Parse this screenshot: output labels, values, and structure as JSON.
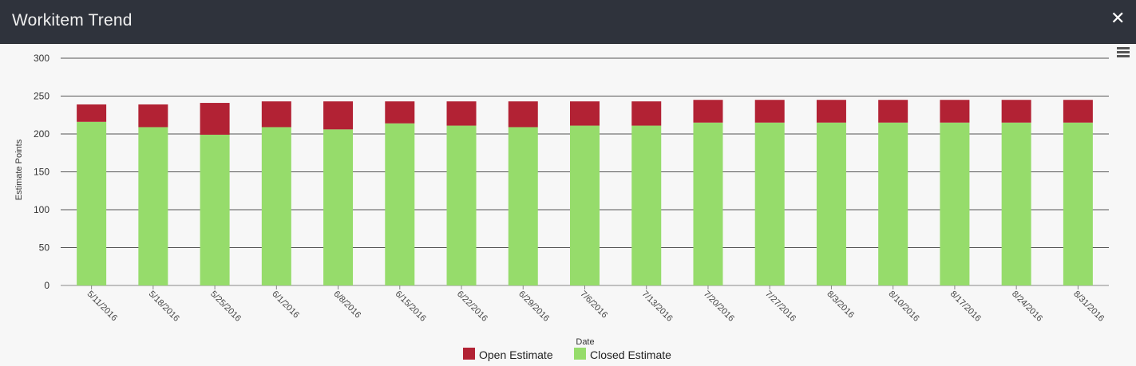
{
  "window": {
    "title": "Workitem Trend"
  },
  "colors": {
    "open": "#b22234",
    "closed": "#96dc6b",
    "titlebar": "#2f333c",
    "grid": "#555555"
  },
  "icons": {
    "close": "close-icon",
    "menu": "hamburger-menu-icon"
  },
  "chart_data": {
    "type": "bar",
    "stacked": true,
    "xlabel": "Date",
    "ylabel": "Estimate Points",
    "ylim": [
      0,
      300
    ],
    "yticks": [
      0,
      50,
      100,
      150,
      200,
      250,
      300
    ],
    "grid": true,
    "legend_position": "bottom-center",
    "categories": [
      "5/11/2016",
      "5/18/2016",
      "5/25/2016",
      "6/1/2016",
      "6/8/2016",
      "6/15/2016",
      "6/22/2016",
      "6/29/2016",
      "7/6/2016",
      "7/13/2016",
      "7/20/2016",
      "7/27/2016",
      "8/3/2016",
      "8/10/2016",
      "8/17/2016",
      "8/24/2016",
      "8/31/2016"
    ],
    "series": [
      {
        "name": "Closed Estimate",
        "values": [
          216,
          209,
          199,
          209,
          206,
          214,
          211,
          209,
          211,
          211,
          215,
          215,
          215,
          215,
          215,
          215,
          215
        ]
      },
      {
        "name": "Open Estimate",
        "values": [
          23,
          30,
          42,
          34,
          37,
          29,
          32,
          34,
          32,
          32,
          30,
          30,
          30,
          30,
          30,
          30,
          30
        ]
      }
    ]
  }
}
